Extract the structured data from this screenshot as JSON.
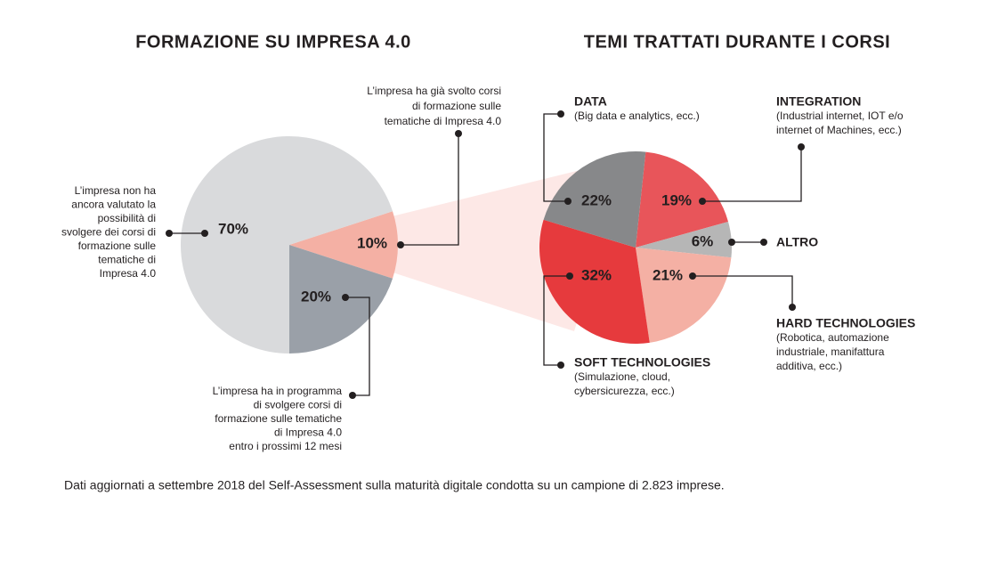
{
  "chart_data": [
    {
      "type": "pie",
      "title": "FORMAZIONE SU IMPRESA 4.0",
      "categories": [
        [
          "L’impresa ha già svolto corsi",
          "di formazione sulle",
          "tematiche di Impresa 4.0"
        ],
        [
          "L’impresa ha in programma",
          "di svolgere corsi di",
          "formazione sulle tematiche",
          "di Impresa 4.0",
          "entro i prossimi 12 mesi"
        ],
        [
          "L’impresa non ha",
          "ancora valutato la",
          "possibilità di",
          "svolgere dei corsi di",
          "formazione sulle",
          "tematiche di",
          "Impresa 4.0"
        ]
      ],
      "values": [
        10,
        20,
        70
      ],
      "value_labels": [
        "10%",
        "20%",
        "70%"
      ],
      "colors": [
        "#f4b0a4",
        "#9aa0a8",
        "#d9dadc"
      ]
    },
    {
      "type": "pie",
      "title": "TEMI TRATTATI DURANTE I CORSI",
      "categories": [
        "INTEGRATION",
        "ALTRO",
        "HARD TECHNOLOGIES",
        "SOFT TECHNOLOGIES",
        "DATA"
      ],
      "category_notes": [
        [
          "(Industrial internet, IOT e/o",
          "internet of Machines, ecc.)"
        ],
        null,
        [
          "(Robotica, automazione",
          "industriale, manifattura",
          "additiva, ecc.)"
        ],
        [
          "(Simulazione, cloud,",
          "cybersicurezza, ecc.)"
        ],
        [
          "(Big data e analytics, ecc.)"
        ]
      ],
      "values": [
        19,
        6,
        21,
        32,
        22
      ],
      "value_labels": [
        "19%",
        "6%",
        "21%",
        "32%",
        "22%"
      ],
      "colors": [
        "#e8555a",
        "#b6b6b6",
        "#f4b0a4",
        "#e63a3d",
        "#87888a"
      ]
    }
  ],
  "footnote": "Dati aggiornati a settembre 2018 del Self-Assessment sulla maturità digitale condotta su un campione di 2.823 imprese."
}
